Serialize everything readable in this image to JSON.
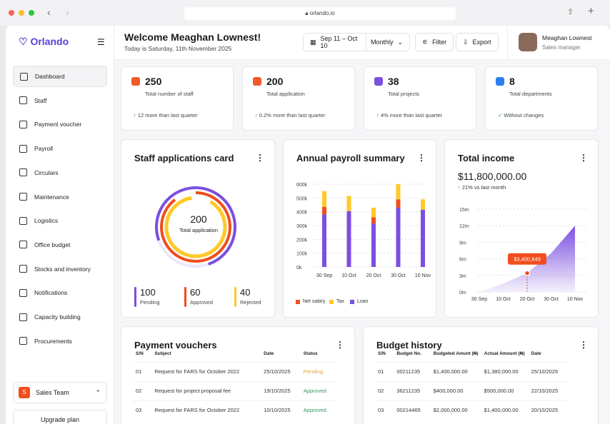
{
  "browser": {
    "url": "orlando.io"
  },
  "sidebar": {
    "logo": "Orlando",
    "items": [
      {
        "label": "Dashboard",
        "icon": "grid-icon"
      },
      {
        "label": "Staff",
        "icon": "users-icon"
      },
      {
        "label": "Payment voucher",
        "icon": "wallet-icon"
      },
      {
        "label": "Payroll",
        "icon": "dollar-icon"
      },
      {
        "label": "Circulars",
        "icon": "file-icon"
      },
      {
        "label": "Maintenance",
        "icon": "gear-icon"
      },
      {
        "label": "Logistics",
        "icon": "globe-icon"
      },
      {
        "label": "Office budget",
        "icon": "folder-icon"
      },
      {
        "label": "Stocks and inventory",
        "icon": "layers-icon"
      },
      {
        "label": "Notifications",
        "icon": "bell-icon"
      },
      {
        "label": "Capacity building",
        "icon": "chart-icon"
      },
      {
        "label": "Procurements",
        "icon": "box-icon"
      }
    ],
    "team": {
      "badge": "S",
      "label": "Sales Team"
    },
    "upgrade": "Upgrade plan"
  },
  "header": {
    "title": "Welcome Meaghan Lownest!",
    "subtitle": "Today is Saturday, 11th November 2025",
    "date_range": "Sep 11 – Oct 10",
    "period": "Monthly",
    "filter": "Filter",
    "export": "Export",
    "user": {
      "name": "Meaghan Lownest",
      "role": "Sales manager"
    }
  },
  "stats": [
    {
      "value": "250",
      "label": "Total number of staff",
      "change": "12 more than last quarter",
      "color": "#f05a28"
    },
    {
      "value": "200",
      "label": "Total application",
      "change": "0.2% more than last quarter",
      "color": "#f05a28"
    },
    {
      "value": "38",
      "label": "Total projects",
      "change": "4% more than last quarter",
      "color": "#7b4fe0"
    },
    {
      "value": "8",
      "label": "Total departments",
      "change": "Without changes",
      "color": "#2f7ff0"
    }
  ],
  "applications": {
    "title": "Staff applications card",
    "total": "200",
    "total_label": "Total application",
    "items": [
      {
        "value": "100",
        "label": "Pending",
        "color": "#7b4fe0"
      },
      {
        "value": "60",
        "label": "Approved",
        "color": "#f04e1e"
      },
      {
        "value": "40",
        "label": "Rejected",
        "color": "#ffc928"
      }
    ]
  },
  "chart_data": [
    {
      "type": "bar",
      "title": "Annual payroll summary",
      "categories": [
        "30 Sep",
        "10 Oct",
        "20 Oct",
        "30 Oct",
        "10 Nov"
      ],
      "ylim": [
        0,
        600
      ],
      "yticks": [
        "0k",
        "100k",
        "200k",
        "300k",
        "400k",
        "500k",
        "600k"
      ],
      "stacked": true,
      "series": [
        {
          "name": "Loan",
          "color": "#7b4fe0",
          "values": [
            380,
            405,
            315,
            430,
            415
          ]
        },
        {
          "name": "Net salary",
          "color": "#f04e1e",
          "values": [
            55,
            0,
            45,
            60,
            0
          ]
        },
        {
          "name": "Tax",
          "color": "#ffc928",
          "values": [
            115,
            110,
            70,
            110,
            75
          ]
        }
      ],
      "legend": [
        "Net salary",
        "Tax",
        "Loan"
      ]
    },
    {
      "type": "area",
      "title": "Total income",
      "total": "$11,800,000.00",
      "change": "21% vs last month",
      "categories": [
        "30 Sep",
        "10 Oct",
        "20 Oct",
        "30 Oct",
        "10 Nov"
      ],
      "yticks": [
        "0m",
        "3m",
        "6m",
        "9m",
        "12m",
        "15m"
      ],
      "ylim": [
        0,
        15
      ],
      "values": [
        0,
        1.5,
        3.4,
        7,
        12
      ],
      "tooltip": "$3,400,849"
    }
  ],
  "vouchers": {
    "title": "Payment vouchers",
    "columns": [
      "S/N",
      "Subject",
      "Date",
      "Status"
    ],
    "rows": [
      [
        "01",
        "Request for FARS for October 2022",
        "25/10/2025",
        "Pending"
      ],
      [
        "02",
        "Request for project proposal fee",
        "19/10/2025",
        "Approved"
      ],
      [
        "03",
        "Request for FARS for October 2022",
        "10/10/2025",
        "Approved"
      ]
    ]
  },
  "budget": {
    "title": "Budget history",
    "columns": [
      "S/N",
      "Budget No.",
      "Budgeted Amunt (₦)",
      "Actual Amount (₦)",
      "Date"
    ],
    "rows": [
      [
        "01",
        "00211235",
        "$1,400,000.00",
        "$1,380,000.00",
        "25/10/2025"
      ],
      [
        "02",
        "36211235",
        "$400,000.00",
        "$500,000.00",
        "22/10/2025"
      ],
      [
        "03",
        "00214465",
        "$2,000,000.00",
        "$1,400,000.00",
        "20/10/2025"
      ]
    ]
  }
}
